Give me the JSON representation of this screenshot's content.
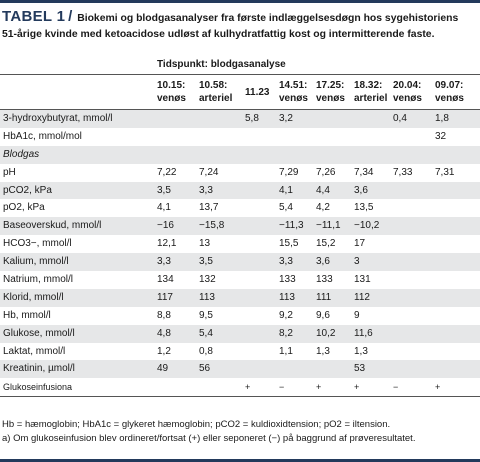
{
  "caption": {
    "label": "TABEL 1",
    "slash": "/",
    "text": "Biokemi og blodgasanalyser fra første indlæggelsesdøgn hos sygehistoriens 51-årige kvinde med ketoacidose udløst af kulhydratfattig kost og intermitterende faste."
  },
  "table": {
    "timepoint_header": "Tidspunkt: blodgasanalyse",
    "columns": [
      [
        "10.15:",
        "venøs"
      ],
      [
        "10.58:",
        "arteriel"
      ],
      [
        "11.23",
        ""
      ],
      [
        "14.51:",
        "venøs"
      ],
      [
        "17.25:",
        "venøs"
      ],
      [
        "18.32:",
        "arteriel"
      ],
      [
        "20.04:",
        "venøs"
      ],
      [
        "09.07:",
        "venøs"
      ]
    ],
    "rows": [
      {
        "label": "3-hydroxybutyrat, mmol/l",
        "values": [
          "",
          "",
          "5,8",
          "3,2",
          "",
          "",
          "0,4",
          "1,8"
        ]
      },
      {
        "label": "HbA1c, mmol/mol",
        "values": [
          "",
          "",
          "",
          "",
          "",
          "",
          "",
          "32"
        ]
      },
      {
        "label": "Blodgas",
        "section": true,
        "values": [
          "",
          "",
          "",
          "",
          "",
          "",
          "",
          ""
        ]
      },
      {
        "label": "pH",
        "values": [
          "7,22",
          "7,24",
          "",
          "7,29",
          "7,26",
          "7,34",
          "7,33",
          "7,31"
        ]
      },
      {
        "label": "pCO2, kPa",
        "values": [
          "3,5",
          "3,3",
          "",
          "4,1",
          "4,4",
          "3,6",
          "",
          ""
        ]
      },
      {
        "label": "pO2, kPa",
        "values": [
          "4,1",
          "13,7",
          "",
          "5,4",
          "4,2",
          "13,5",
          "",
          ""
        ]
      },
      {
        "label": "Baseoverskud, mmol/l",
        "values": [
          "−16",
          "−15,8",
          "",
          "−11,3",
          "−11,1",
          "−10,2",
          "",
          ""
        ]
      },
      {
        "label": "HCO3−, mmol/l",
        "values": [
          "12,1",
          "13",
          "",
          "15,5",
          "15,2",
          "17",
          "",
          ""
        ]
      },
      {
        "label": "Kalium, mmol/l",
        "values": [
          "3,3",
          "3,5",
          "",
          "3,3",
          "3,6",
          "3",
          "",
          ""
        ]
      },
      {
        "label": "Natrium, mmol/l",
        "values": [
          "134",
          "132",
          "",
          "133",
          "133",
          "131",
          "",
          ""
        ]
      },
      {
        "label": "Klorid, mmol/l",
        "values": [
          "117",
          "113",
          "",
          "113",
          "111",
          "112",
          "",
          ""
        ]
      },
      {
        "label": "Hb, mmol/l",
        "values": [
          "8,8",
          "9,5",
          "",
          "9,2",
          "9,6",
          "9",
          "",
          ""
        ]
      },
      {
        "label": "Glukose, mmol/l",
        "values": [
          "4,8",
          "5,4",
          "",
          "8,2",
          "10,2",
          "11,6",
          "",
          ""
        ]
      },
      {
        "label": "Laktat, mmol/l",
        "values": [
          "1,2",
          "0,8",
          "",
          "1,1",
          "1,3",
          "1,3",
          "",
          ""
        ]
      },
      {
        "label": "Kreatinin, µmol/l",
        "values": [
          "49",
          "56",
          "",
          "",
          "",
          "53",
          "",
          ""
        ]
      },
      {
        "label": "Glukoseinfusiona",
        "small": true,
        "values": [
          "",
          "",
          "+",
          "−",
          "+",
          "+",
          "−",
          "+"
        ]
      }
    ]
  },
  "footnotes": {
    "abbreviations": "Hb = hæmoglobin; HbA1c = glykeret hæmoglobin; pCO2 = kuldioxidtension; pO2 = iltension.",
    "note_a": "a) Om glukoseinfusion blev ordineret/fortsat (+) eller seponeret (−) på baggrund af prøveresultatet."
  }
}
